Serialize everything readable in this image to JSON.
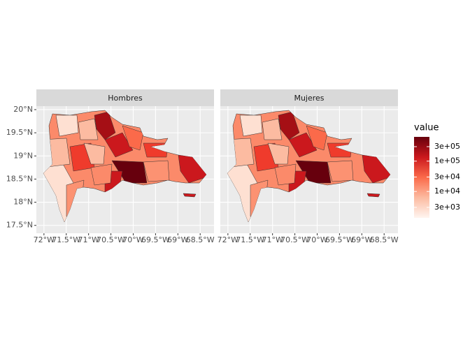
{
  "chart_data": {
    "type": "map",
    "facets": [
      "Hombres",
      "Mujeres"
    ],
    "xlim": [
      -72.17,
      -68.19
    ],
    "ylim": [
      17.33,
      20.075
    ],
    "xticks": [
      {
        "value": -72,
        "label": "72°W"
      },
      {
        "value": -71.5,
        "label": "71.5°W"
      },
      {
        "value": -71,
        "label": "71°W"
      },
      {
        "value": -70.5,
        "label": "70.5°W"
      },
      {
        "value": -70,
        "label": "70°W"
      },
      {
        "value": -69.5,
        "label": "69.5°W"
      },
      {
        "value": -69,
        "label": "69°W"
      },
      {
        "value": -68.5,
        "label": "68.5°W"
      }
    ],
    "yticks": [
      {
        "value": 17.5,
        "label": "17.5°N"
      },
      {
        "value": 18,
        "label": "18°N"
      },
      {
        "value": 18.5,
        "label": "18.5°N"
      },
      {
        "value": 19,
        "label": "19°N"
      },
      {
        "value": 19.5,
        "label": "19.5°N"
      },
      {
        "value": 20,
        "label": "20°N"
      }
    ],
    "grid": true,
    "legend": {
      "title": "value",
      "log_scale": true,
      "limits": [
        1350,
        630000
      ],
      "colors": [
        "#fff5f0",
        "#fcbba1",
        "#fb6a4a",
        "#cb181d",
        "#67000d"
      ],
      "ticks": [
        {
          "value": 300000,
          "label": "3e+05"
        },
        {
          "value": 100000,
          "label": "1e+05"
        },
        {
          "value": 30000,
          "label": "3e+04"
        },
        {
          "value": 10000,
          "label": "1e+04"
        },
        {
          "value": 3000,
          "label": "3e+03"
        }
      ]
    }
  }
}
